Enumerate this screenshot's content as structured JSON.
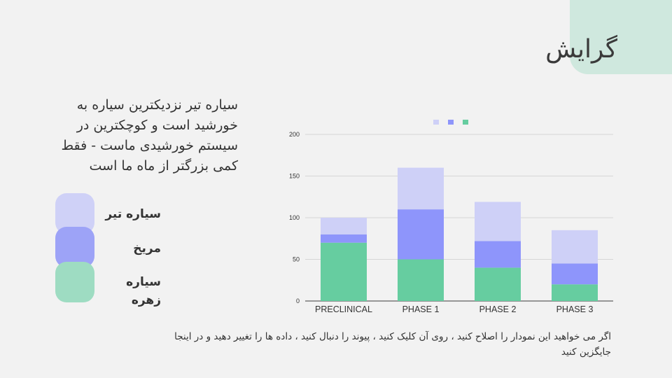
{
  "slide": {
    "title": "گرایش",
    "description": "سیاره تیر نزدیکترین سیاره به خورشید است و کوچکترین در سیستم خورشیدی ماست - فقط کمی بزرگتر از ماه ما است",
    "footer": "اگر می خواهید این نمودار را اصلاح کنید ، روی آن کلیک کنید ، پیوند را دنبال کنید ، داده ها را تغییر دهید و در اینجا جایگزین کنید"
  },
  "legend": [
    {
      "label": "سیاره تیر",
      "color": "#cfd1f7"
    },
    {
      "label": "مریخ",
      "color": "#9da3f7"
    },
    {
      "label": "سیاره زهره",
      "color": "#9edcc2"
    }
  ],
  "chart_data": {
    "type": "bar",
    "stacked": true,
    "categories": [
      "PRECLINICAL",
      "PHASE 1",
      "PHASE 2",
      "PHASE 3"
    ],
    "series": [
      {
        "values": [
          70,
          50,
          40,
          20
        ],
        "color": "#66cda0"
      },
      {
        "values": [
          10,
          60,
          32,
          25
        ],
        "color": "#8e95fb"
      },
      {
        "values": [
          20,
          50,
          47,
          40
        ],
        "color": "#ced0f7"
      }
    ],
    "ylim": [
      0,
      200
    ],
    "yticks": [
      "0",
      "50",
      "100",
      "150",
      "200"
    ],
    "grid": true,
    "legend_position": "top"
  }
}
